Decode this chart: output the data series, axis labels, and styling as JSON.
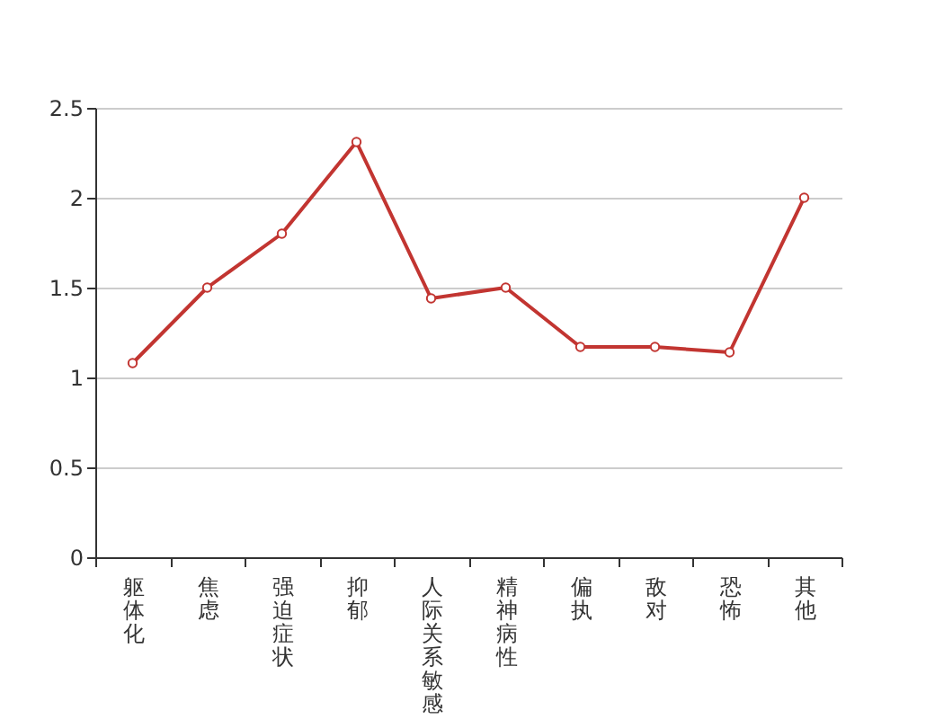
{
  "chart_data": {
    "type": "line",
    "categories": [
      "躯体化",
      "焦虑",
      "强迫症状",
      "抑郁",
      "人际关系敏感",
      "精神病性",
      "偏执",
      "敌对",
      "恐怖",
      "其他"
    ],
    "series": [
      {
        "color": "#c23531",
        "values": [
          1.08,
          1.5,
          1.8,
          2.31,
          1.44,
          1.5,
          1.17,
          1.17,
          1.14,
          2.0
        ]
      }
    ],
    "ylim": [
      0,
      2.5
    ],
    "yticks": [
      0,
      0.5,
      1,
      1.5,
      2,
      2.5
    ],
    "grid": "y",
    "marker": "circle",
    "line_style": "solid"
  }
}
